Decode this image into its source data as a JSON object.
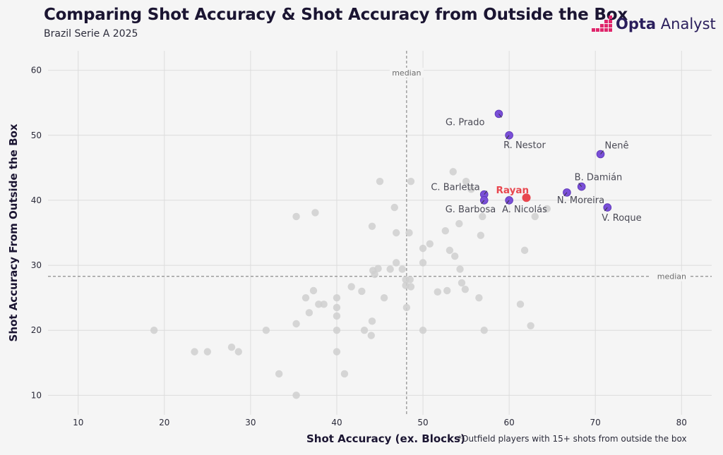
{
  "header": {
    "title": "Comparing Shot Accuracy & Shot Accuracy from Outside the Box",
    "subtitle": "Brazil Serie A 2025"
  },
  "logo": {
    "brand_bold": "Opta",
    "brand_light": "Analyst"
  },
  "footnote": "*Outfield players with 15+ shots from outside the box",
  "colors": {
    "highlight": "#7a4fd8",
    "focus": "#e8474f",
    "others": "#cfcfcf",
    "grid": "#dcdcdc",
    "median": "#8c8c8c",
    "logo_pink": "#e0266c"
  },
  "chart_data": {
    "type": "scatter",
    "title": "Comparing Shot Accuracy & Shot Accuracy from Outside the Box",
    "xlabel": "Shot Accuracy (ex. Blocks)",
    "ylabel": "Shot Accuracy From Outside the Box",
    "xlim": [
      6.5,
      83.5
    ],
    "ylim": [
      7,
      63
    ],
    "xticks": [
      10,
      20,
      30,
      40,
      50,
      60,
      70,
      80
    ],
    "yticks": [
      10,
      20,
      30,
      40,
      50,
      60
    ],
    "grid": true,
    "median_x": 48.1,
    "median_y": 28.3,
    "median_label": "median",
    "focus": {
      "name": "Rayan",
      "x": 62.0,
      "y": 40.4
    },
    "highlighted": [
      {
        "name": "G. Prado",
        "x": 58.8,
        "y": 53.3
      },
      {
        "name": "R. Nestor",
        "x": 60.0,
        "y": 50.0
      },
      {
        "name": "Nenê",
        "x": 70.6,
        "y": 47.1
      },
      {
        "name": "B. Damián",
        "x": 68.4,
        "y": 42.1
      },
      {
        "name": "C. Barletta",
        "x": 57.1,
        "y": 40.9
      },
      {
        "name": "G. Barbosa",
        "x": 57.1,
        "y": 40.0
      },
      {
        "name": "A. Nicolás",
        "x": 60.0,
        "y": 40.0
      },
      {
        "name": "N. Moreira",
        "x": 66.7,
        "y": 41.2
      },
      {
        "name": "V. Roque",
        "x": 71.4,
        "y": 38.9
      }
    ],
    "others": [
      {
        "x": 18.8,
        "y": 20.0
      },
      {
        "x": 23.5,
        "y": 16.7
      },
      {
        "x": 25.0,
        "y": 16.7
      },
      {
        "x": 27.8,
        "y": 17.4
      },
      {
        "x": 28.6,
        "y": 16.7
      },
      {
        "x": 31.8,
        "y": 20.0
      },
      {
        "x": 33.3,
        "y": 13.3
      },
      {
        "x": 35.3,
        "y": 10.0
      },
      {
        "x": 35.3,
        "y": 21.0
      },
      {
        "x": 35.3,
        "y": 37.5
      },
      {
        "x": 36.4,
        "y": 25.0
      },
      {
        "x": 36.8,
        "y": 22.7
      },
      {
        "x": 37.3,
        "y": 26.1
      },
      {
        "x": 37.5,
        "y": 38.1
      },
      {
        "x": 37.9,
        "y": 24.0
      },
      {
        "x": 38.5,
        "y": 24.0
      },
      {
        "x": 40.0,
        "y": 25.0
      },
      {
        "x": 40.0,
        "y": 23.5
      },
      {
        "x": 40.0,
        "y": 22.2
      },
      {
        "x": 40.0,
        "y": 20.0
      },
      {
        "x": 40.0,
        "y": 16.7
      },
      {
        "x": 40.9,
        "y": 13.3
      },
      {
        "x": 41.7,
        "y": 26.7
      },
      {
        "x": 42.9,
        "y": 26.0
      },
      {
        "x": 43.2,
        "y": 20.0
      },
      {
        "x": 44.0,
        "y": 19.2
      },
      {
        "x": 44.1,
        "y": 21.4
      },
      {
        "x": 44.2,
        "y": 29.2
      },
      {
        "x": 44.4,
        "y": 28.6
      },
      {
        "x": 44.8,
        "y": 29.5
      },
      {
        "x": 45.0,
        "y": 42.9
      },
      {
        "x": 44.1,
        "y": 36.0
      },
      {
        "x": 45.5,
        "y": 25.0
      },
      {
        "x": 46.2,
        "y": 29.4
      },
      {
        "x": 46.7,
        "y": 38.9
      },
      {
        "x": 46.9,
        "y": 35.0
      },
      {
        "x": 46.9,
        "y": 30.4
      },
      {
        "x": 47.6,
        "y": 29.4
      },
      {
        "x": 48.0,
        "y": 27.8
      },
      {
        "x": 48.0,
        "y": 26.9
      },
      {
        "x": 48.1,
        "y": 23.5
      },
      {
        "x": 48.4,
        "y": 35.0
      },
      {
        "x": 48.5,
        "y": 27.8
      },
      {
        "x": 48.6,
        "y": 42.9
      },
      {
        "x": 48.6,
        "y": 26.7
      },
      {
        "x": 50.0,
        "y": 32.6
      },
      {
        "x": 50.0,
        "y": 30.4
      },
      {
        "x": 50.0,
        "y": 20.0
      },
      {
        "x": 50.8,
        "y": 33.3
      },
      {
        "x": 51.7,
        "y": 25.9
      },
      {
        "x": 52.6,
        "y": 35.3
      },
      {
        "x": 52.8,
        "y": 26.1
      },
      {
        "x": 53.1,
        "y": 32.3
      },
      {
        "x": 53.5,
        "y": 44.4
      },
      {
        "x": 53.7,
        "y": 31.4
      },
      {
        "x": 54.2,
        "y": 36.4
      },
      {
        "x": 54.3,
        "y": 29.4
      },
      {
        "x": 54.5,
        "y": 27.3
      },
      {
        "x": 54.9,
        "y": 26.3
      },
      {
        "x": 55.0,
        "y": 42.9
      },
      {
        "x": 55.6,
        "y": 41.7
      },
      {
        "x": 56.5,
        "y": 25.0
      },
      {
        "x": 56.7,
        "y": 34.6
      },
      {
        "x": 56.9,
        "y": 37.5
      },
      {
        "x": 57.1,
        "y": 20.0
      },
      {
        "x": 61.3,
        "y": 24.0
      },
      {
        "x": 61.8,
        "y": 32.3
      },
      {
        "x": 62.5,
        "y": 20.7
      },
      {
        "x": 63.0,
        "y": 37.5
      },
      {
        "x": 64.4,
        "y": 38.7
      }
    ]
  }
}
